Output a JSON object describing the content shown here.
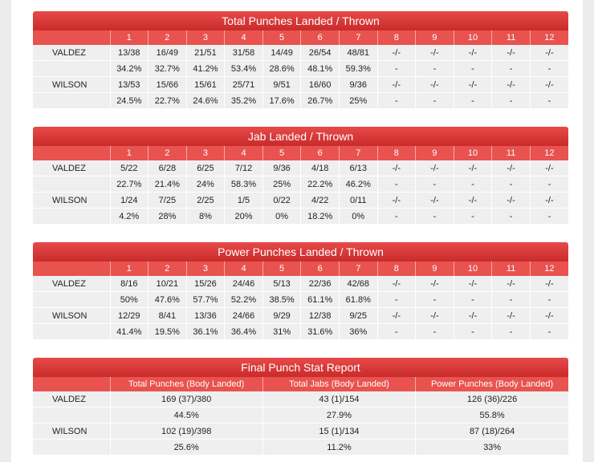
{
  "rounds_header": [
    "1",
    "2",
    "3",
    "4",
    "5",
    "6",
    "7",
    "8",
    "9",
    "10",
    "11",
    "12"
  ],
  "sections": [
    {
      "title": "Total Punches Landed / Thrown",
      "fighters": [
        {
          "name": "VALDEZ",
          "landed": [
            "13/38",
            "16/49",
            "21/51",
            "31/58",
            "14/49",
            "26/54",
            "48/81",
            "-/-",
            "-/-",
            "-/-",
            "-/-",
            "-/-"
          ],
          "pct": [
            "34.2%",
            "32.7%",
            "41.2%",
            "53.4%",
            "28.6%",
            "48.1%",
            "59.3%",
            "-",
            "-",
            "-",
            "-",
            "-"
          ]
        },
        {
          "name": "WILSON",
          "landed": [
            "13/53",
            "15/66",
            "15/61",
            "25/71",
            "9/51",
            "16/60",
            "9/36",
            "-/-",
            "-/-",
            "-/-",
            "-/-",
            "-/-"
          ],
          "pct": [
            "24.5%",
            "22.7%",
            "24.6%",
            "35.2%",
            "17.6%",
            "26.7%",
            "25%",
            "-",
            "-",
            "-",
            "-",
            "-"
          ]
        }
      ]
    },
    {
      "title": "Jab Landed / Thrown",
      "fighters": [
        {
          "name": "VALDEZ",
          "landed": [
            "5/22",
            "6/28",
            "6/25",
            "7/12",
            "9/36",
            "4/18",
            "6/13",
            "-/-",
            "-/-",
            "-/-",
            "-/-",
            "-/-"
          ],
          "pct": [
            "22.7%",
            "21.4%",
            "24%",
            "58.3%",
            "25%",
            "22.2%",
            "46.2%",
            "-",
            "-",
            "-",
            "-",
            "-"
          ]
        },
        {
          "name": "WILSON",
          "landed": [
            "1/24",
            "7/25",
            "2/25",
            "1/5",
            "0/22",
            "4/22",
            "0/11",
            "-/-",
            "-/-",
            "-/-",
            "-/-",
            "-/-"
          ],
          "pct": [
            "4.2%",
            "28%",
            "8%",
            "20%",
            "0%",
            "18.2%",
            "0%",
            "-",
            "-",
            "-",
            "-",
            "-"
          ]
        }
      ]
    },
    {
      "title": "Power Punches Landed / Thrown",
      "fighters": [
        {
          "name": "VALDEZ",
          "landed": [
            "8/16",
            "10/21",
            "15/26",
            "24/46",
            "5/13",
            "22/36",
            "42/68",
            "-/-",
            "-/-",
            "-/-",
            "-/-",
            "-/-"
          ],
          "pct": [
            "50%",
            "47.6%",
            "57.7%",
            "52.2%",
            "38.5%",
            "61.1%",
            "61.8%",
            "-",
            "-",
            "-",
            "-",
            "-"
          ]
        },
        {
          "name": "WILSON",
          "landed": [
            "12/29",
            "8/41",
            "13/36",
            "24/66",
            "9/29",
            "12/38",
            "9/25",
            "-/-",
            "-/-",
            "-/-",
            "-/-",
            "-/-"
          ],
          "pct": [
            "41.4%",
            "19.5%",
            "36.1%",
            "36.4%",
            "31%",
            "31.6%",
            "36%",
            "-",
            "-",
            "-",
            "-",
            "-"
          ]
        }
      ]
    }
  ],
  "final": {
    "title": "Final Punch Stat Report",
    "headers": [
      "Total Punches (Body Landed)",
      "Total Jabs (Body Landed)",
      "Power Punches (Body Landed)"
    ],
    "fighters": [
      {
        "name": "VALDEZ",
        "stats": [
          "169 (37)/380",
          "43 (1)/154",
          "126 (36)/226"
        ],
        "pct": [
          "44.5%",
          "27.9%",
          "55.8%"
        ]
      },
      {
        "name": "WILSON",
        "stats": [
          "102 (19)/398",
          "15 (1)/134",
          "87 (18)/264"
        ],
        "pct": [
          "25.6%",
          "11.2%",
          "33%"
        ]
      }
    ]
  },
  "colors": {
    "header_red": "#e8524f",
    "title_red": "#d33333",
    "cell_gray": "#efefef"
  }
}
